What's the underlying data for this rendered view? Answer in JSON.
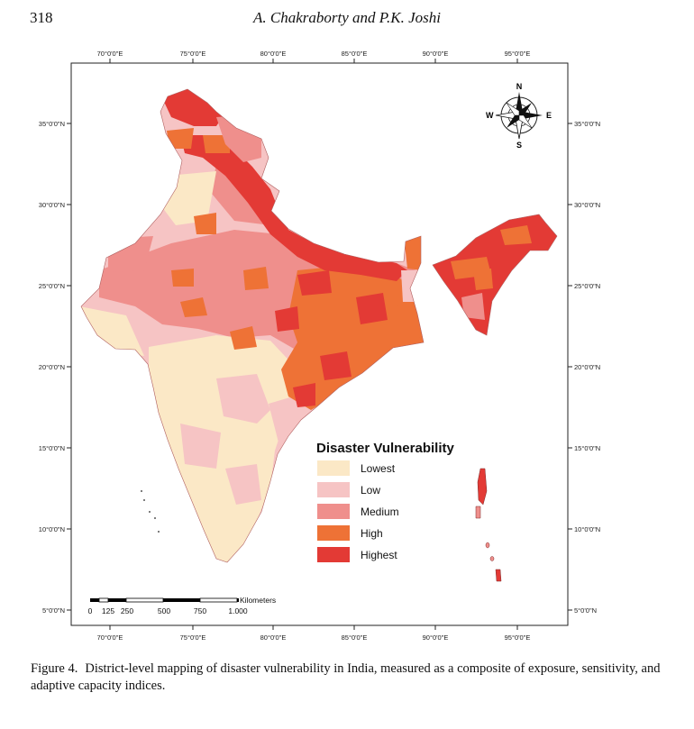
{
  "header": {
    "page_number": "318",
    "running_head": "A. Chakraborty and P.K. Joshi"
  },
  "map": {
    "longitude_labels": [
      "70°0'0\"E",
      "75°0'0\"E",
      "80°0'0\"E",
      "85°0'0\"E",
      "90°0'0\"E",
      "95°0'0\"E"
    ],
    "latitude_labels": [
      "35°0'0\"N",
      "30°0'0\"N",
      "25°0'0\"N",
      "20°0'0\"N",
      "15°0'0\"N",
      "10°0'0\"N",
      "5°0'0\"N"
    ],
    "compass": {
      "north": "N",
      "south": "S",
      "east": "E",
      "west": "W"
    },
    "legend": {
      "title": "Disaster Vulnerability",
      "classes": [
        {
          "label": "Lowest",
          "color": "#fbe8c6"
        },
        {
          "label": "Low",
          "color": "#f6c4c4"
        },
        {
          "label": "Medium",
          "color": "#ef8f8c"
        },
        {
          "label": "High",
          "color": "#ee7236"
        },
        {
          "label": "Highest",
          "color": "#e33a35"
        }
      ]
    },
    "scale_bar": {
      "unit": "Kilometers",
      "ticks": [
        "0",
        "125",
        "250",
        "500",
        "750",
        "1.000"
      ]
    }
  },
  "caption": {
    "label": "Figure 4.",
    "text": "District-level mapping of disaster vulnerability in India, measured as a composite of exposure, sensitivity, and adaptive capacity indices."
  }
}
